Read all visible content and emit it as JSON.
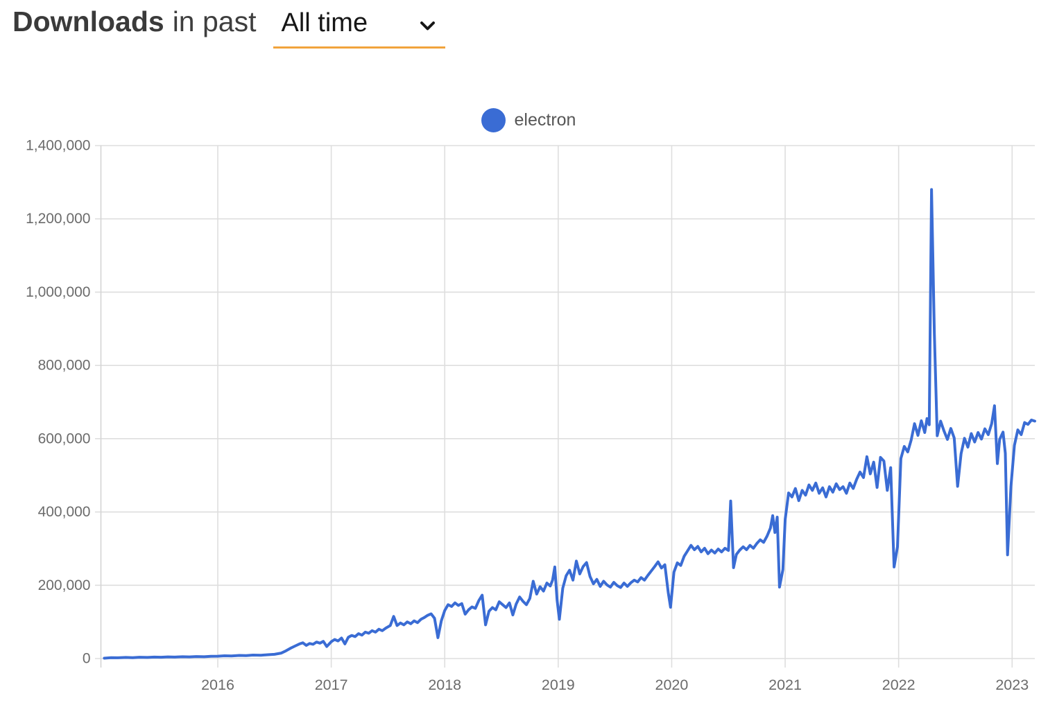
{
  "header": {
    "title_bold": "Downloads",
    "title_rest": "in past",
    "range_value": "All time"
  },
  "legend": {
    "items": [
      {
        "label": "electron",
        "color": "#3a6cd4"
      }
    ]
  },
  "chart_data": {
    "type": "line",
    "title": "Downloads in past All time",
    "xlabel": "",
    "ylabel": "",
    "grid": true,
    "legend_position": "top-center",
    "xlim": [
      2014.97,
      2023.2
    ],
    "ylim": [
      0,
      1400000
    ],
    "x_ticks": [
      2016,
      2017,
      2018,
      2019,
      2020,
      2021,
      2022,
      2023
    ],
    "x_tick_labels": [
      "2016",
      "2017",
      "2018",
      "2019",
      "2020",
      "2021",
      "2022",
      "2023"
    ],
    "y_ticks": [
      0,
      200000,
      400000,
      600000,
      800000,
      1000000,
      1200000,
      1400000
    ],
    "y_tick_labels": [
      "0",
      "200,000",
      "400,000",
      "600,000",
      "800,000",
      "1,000,000",
      "1,200,000",
      "1,400,000"
    ],
    "gridline_color": "#dedede",
    "axis_line_color": "#d4d4d4",
    "tick_label_color": "#6b6b6b",
    "series": [
      {
        "name": "electron",
        "color": "#3a6cd4",
        "points": [
          [
            2015.0,
            1000
          ],
          [
            2015.06,
            2500
          ],
          [
            2015.12,
            2000
          ],
          [
            2015.19,
            3000
          ],
          [
            2015.25,
            2500
          ],
          [
            2015.31,
            3500
          ],
          [
            2015.38,
            3000
          ],
          [
            2015.44,
            4000
          ],
          [
            2015.5,
            3500
          ],
          [
            2015.56,
            4500
          ],
          [
            2015.62,
            4000
          ],
          [
            2015.69,
            5000
          ],
          [
            2015.75,
            4500
          ],
          [
            2015.81,
            5500
          ],
          [
            2015.88,
            5000
          ],
          [
            2015.94,
            6000
          ],
          [
            2016.0,
            6500
          ],
          [
            2016.06,
            7500
          ],
          [
            2016.12,
            7000
          ],
          [
            2016.19,
            8500
          ],
          [
            2016.25,
            8000
          ],
          [
            2016.31,
            9500
          ],
          [
            2016.38,
            9000
          ],
          [
            2016.44,
            10500
          ],
          [
            2016.5,
            11500
          ],
          [
            2016.56,
            15000
          ],
          [
            2016.6,
            21000
          ],
          [
            2016.64,
            28000
          ],
          [
            2016.68,
            34000
          ],
          [
            2016.72,
            40000
          ],
          [
            2016.75,
            43000
          ],
          [
            2016.78,
            36000
          ],
          [
            2016.81,
            41000
          ],
          [
            2016.84,
            39000
          ],
          [
            2016.87,
            45000
          ],
          [
            2016.9,
            42000
          ],
          [
            2016.93,
            47000
          ],
          [
            2016.96,
            33000
          ],
          [
            2017.0,
            46000
          ],
          [
            2017.03,
            52000
          ],
          [
            2017.06,
            48000
          ],
          [
            2017.09,
            56000
          ],
          [
            2017.12,
            40000
          ],
          [
            2017.15,
            58000
          ],
          [
            2017.18,
            63000
          ],
          [
            2017.21,
            60000
          ],
          [
            2017.24,
            68000
          ],
          [
            2017.27,
            64000
          ],
          [
            2017.3,
            72000
          ],
          [
            2017.33,
            69000
          ],
          [
            2017.36,
            76000
          ],
          [
            2017.39,
            72000
          ],
          [
            2017.42,
            80000
          ],
          [
            2017.45,
            76000
          ],
          [
            2017.48,
            83000
          ],
          [
            2017.52,
            90000
          ],
          [
            2017.55,
            115000
          ],
          [
            2017.58,
            90000
          ],
          [
            2017.61,
            97000
          ],
          [
            2017.64,
            92000
          ],
          [
            2017.67,
            100000
          ],
          [
            2017.7,
            95000
          ],
          [
            2017.73,
            103000
          ],
          [
            2017.76,
            98000
          ],
          [
            2017.79,
            107000
          ],
          [
            2017.82,
            112000
          ],
          [
            2017.85,
            118000
          ],
          [
            2017.88,
            122000
          ],
          [
            2017.91,
            110000
          ],
          [
            2017.94,
            57000
          ],
          [
            2017.97,
            103000
          ],
          [
            2018.0,
            131000
          ],
          [
            2018.03,
            147000
          ],
          [
            2018.06,
            142000
          ],
          [
            2018.09,
            152000
          ],
          [
            2018.12,
            145000
          ],
          [
            2018.15,
            150000
          ],
          [
            2018.18,
            121000
          ],
          [
            2018.21,
            133000
          ],
          [
            2018.24,
            141000
          ],
          [
            2018.27,
            137000
          ],
          [
            2018.3,
            158000
          ],
          [
            2018.33,
            173000
          ],
          [
            2018.36,
            92000
          ],
          [
            2018.39,
            129000
          ],
          [
            2018.42,
            139000
          ],
          [
            2018.45,
            133000
          ],
          [
            2018.48,
            155000
          ],
          [
            2018.51,
            147000
          ],
          [
            2018.54,
            139000
          ],
          [
            2018.57,
            152000
          ],
          [
            2018.6,
            119000
          ],
          [
            2018.63,
            149000
          ],
          [
            2018.66,
            168000
          ],
          [
            2018.69,
            156000
          ],
          [
            2018.72,
            147000
          ],
          [
            2018.75,
            164000
          ],
          [
            2018.78,
            211000
          ],
          [
            2018.81,
            176000
          ],
          [
            2018.84,
            196000
          ],
          [
            2018.87,
            184000
          ],
          [
            2018.9,
            206000
          ],
          [
            2018.93,
            198000
          ],
          [
            2018.95,
            214000
          ],
          [
            2018.97,
            250000
          ],
          [
            2018.99,
            160000
          ],
          [
            2019.01,
            107000
          ],
          [
            2019.04,
            192000
          ],
          [
            2019.07,
            226000
          ],
          [
            2019.1,
            241000
          ],
          [
            2019.13,
            214000
          ],
          [
            2019.16,
            266000
          ],
          [
            2019.19,
            231000
          ],
          [
            2019.22,
            251000
          ],
          [
            2019.25,
            262000
          ],
          [
            2019.28,
            224000
          ],
          [
            2019.31,
            204000
          ],
          [
            2019.34,
            216000
          ],
          [
            2019.37,
            197000
          ],
          [
            2019.4,
            211000
          ],
          [
            2019.43,
            201000
          ],
          [
            2019.46,
            195000
          ],
          [
            2019.49,
            208000
          ],
          [
            2019.52,
            199000
          ],
          [
            2019.55,
            194000
          ],
          [
            2019.58,
            206000
          ],
          [
            2019.61,
            197000
          ],
          [
            2019.64,
            207000
          ],
          [
            2019.67,
            214000
          ],
          [
            2019.7,
            209000
          ],
          [
            2019.73,
            221000
          ],
          [
            2019.76,
            214000
          ],
          [
            2019.79,
            227000
          ],
          [
            2019.82,
            239000
          ],
          [
            2019.85,
            251000
          ],
          [
            2019.88,
            264000
          ],
          [
            2019.91,
            247000
          ],
          [
            2019.94,
            256000
          ],
          [
            2019.97,
            180000
          ],
          [
            2019.99,
            140000
          ],
          [
            2020.02,
            236000
          ],
          [
            2020.05,
            261000
          ],
          [
            2020.08,
            254000
          ],
          [
            2020.11,
            279000
          ],
          [
            2020.14,
            294000
          ],
          [
            2020.17,
            309000
          ],
          [
            2020.2,
            297000
          ],
          [
            2020.23,
            306000
          ],
          [
            2020.26,
            291000
          ],
          [
            2020.29,
            301000
          ],
          [
            2020.32,
            286000
          ],
          [
            2020.35,
            296000
          ],
          [
            2020.38,
            288000
          ],
          [
            2020.41,
            299000
          ],
          [
            2020.44,
            291000
          ],
          [
            2020.47,
            301000
          ],
          [
            2020.5,
            295000
          ],
          [
            2020.52,
            430000
          ],
          [
            2020.545,
            248000
          ],
          [
            2020.57,
            284000
          ],
          [
            2020.6,
            296000
          ],
          [
            2020.63,
            305000
          ],
          [
            2020.66,
            297000
          ],
          [
            2020.69,
            309000
          ],
          [
            2020.72,
            301000
          ],
          [
            2020.75,
            314000
          ],
          [
            2020.78,
            324000
          ],
          [
            2020.81,
            317000
          ],
          [
            2020.84,
            334000
          ],
          [
            2020.87,
            356000
          ],
          [
            2020.89,
            390000
          ],
          [
            2020.91,
            344000
          ],
          [
            2020.93,
            386000
          ],
          [
            2020.95,
            195000
          ],
          [
            2020.98,
            243000
          ],
          [
            2021.0,
            380000
          ],
          [
            2021.03,
            452000
          ],
          [
            2021.06,
            441000
          ],
          [
            2021.09,
            464000
          ],
          [
            2021.12,
            431000
          ],
          [
            2021.15,
            459000
          ],
          [
            2021.18,
            446000
          ],
          [
            2021.21,
            474000
          ],
          [
            2021.24,
            459000
          ],
          [
            2021.27,
            479000
          ],
          [
            2021.3,
            451000
          ],
          [
            2021.33,
            466000
          ],
          [
            2021.36,
            441000
          ],
          [
            2021.39,
            469000
          ],
          [
            2021.42,
            454000
          ],
          [
            2021.45,
            477000
          ],
          [
            2021.48,
            461000
          ],
          [
            2021.51,
            469000
          ],
          [
            2021.54,
            451000
          ],
          [
            2021.57,
            479000
          ],
          [
            2021.6,
            464000
          ],
          [
            2021.63,
            489000
          ],
          [
            2021.66,
            509000
          ],
          [
            2021.69,
            494000
          ],
          [
            2021.72,
            551000
          ],
          [
            2021.75,
            504000
          ],
          [
            2021.78,
            536000
          ],
          [
            2021.81,
            467000
          ],
          [
            2021.84,
            549000
          ],
          [
            2021.87,
            539000
          ],
          [
            2021.9,
            459000
          ],
          [
            2021.93,
            521000
          ],
          [
            2021.96,
            250000
          ],
          [
            2021.99,
            305000
          ],
          [
            2022.02,
            546000
          ],
          [
            2022.05,
            579000
          ],
          [
            2022.08,
            564000
          ],
          [
            2022.11,
            596000
          ],
          [
            2022.14,
            641000
          ],
          [
            2022.17,
            609000
          ],
          [
            2022.2,
            649000
          ],
          [
            2022.23,
            617000
          ],
          [
            2022.25,
            655000
          ],
          [
            2022.27,
            638000
          ],
          [
            2022.29,
            1280000
          ],
          [
            2022.315,
            885000
          ],
          [
            2022.34,
            608000
          ],
          [
            2022.37,
            648000
          ],
          [
            2022.4,
            621000
          ],
          [
            2022.43,
            598000
          ],
          [
            2022.46,
            628000
          ],
          [
            2022.49,
            602000
          ],
          [
            2022.52,
            470000
          ],
          [
            2022.55,
            559000
          ],
          [
            2022.58,
            601000
          ],
          [
            2022.61,
            577000
          ],
          [
            2022.64,
            614000
          ],
          [
            2022.67,
            591000
          ],
          [
            2022.7,
            617000
          ],
          [
            2022.73,
            599000
          ],
          [
            2022.76,
            627000
          ],
          [
            2022.79,
            611000
          ],
          [
            2022.82,
            641000
          ],
          [
            2022.845,
            690000
          ],
          [
            2022.87,
            532000
          ],
          [
            2022.89,
            598000
          ],
          [
            2022.92,
            618000
          ],
          [
            2022.94,
            560000
          ],
          [
            2022.96,
            283000
          ],
          [
            2022.99,
            470000
          ],
          [
            2023.02,
            582000
          ],
          [
            2023.05,
            624000
          ],
          [
            2023.08,
            611000
          ],
          [
            2023.11,
            644000
          ],
          [
            2023.14,
            639000
          ],
          [
            2023.17,
            651000
          ],
          [
            2023.2,
            648000
          ]
        ]
      }
    ]
  }
}
